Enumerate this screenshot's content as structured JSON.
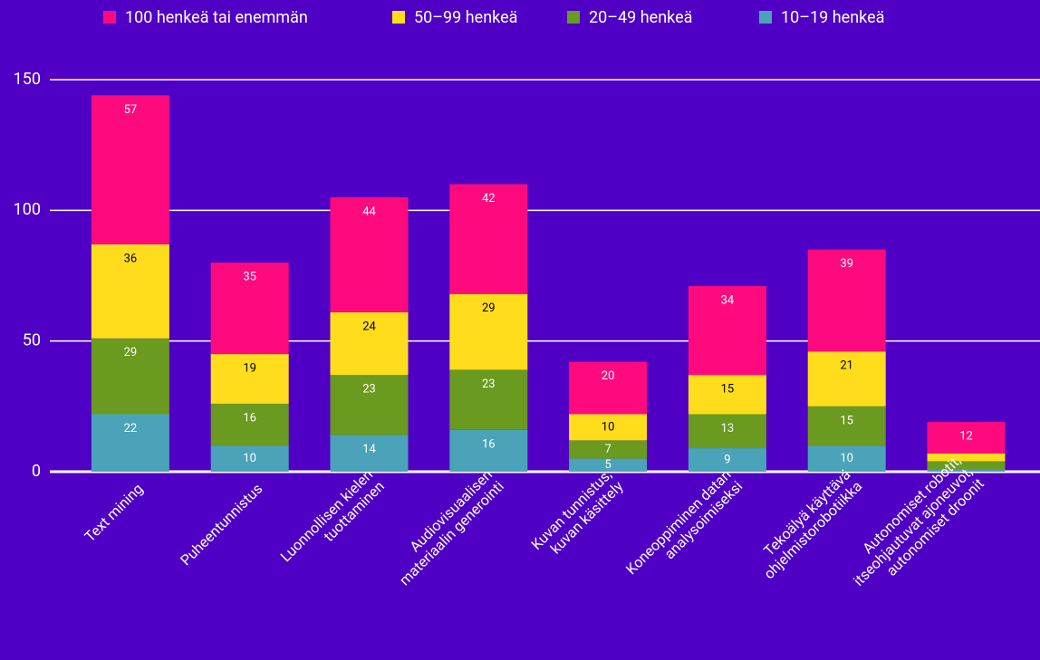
{
  "chart_data": {
    "type": "stacked_bar",
    "categories": [
      [
        "Text mining"
      ],
      [
        "Puheentunnistus"
      ],
      [
        "Luonnollisen kielen",
        "tuottaminen"
      ],
      [
        "Audiovisuaalisen",
        "materiaalin generointi"
      ],
      [
        "Kuvan tunnistus,",
        "kuvan käsittely"
      ],
      [
        "Koneoppiminen datan",
        "analysoimiseksi"
      ],
      [
        "Tekoälyä käyttävä",
        "ohjelmistorobotiikka"
      ],
      [
        "Autonomiset robotit,",
        "itseohjautuvat ajoneuvot,",
        "autonomiset droonit"
      ]
    ],
    "series": [
      {
        "name": "10–19 henkeä",
        "color": "#4aa3b8",
        "values": [
          22,
          10,
          14,
          16,
          5,
          9,
          10,
          1
        ]
      },
      {
        "name": "20–49 henkeä",
        "color": "#6a9a1f",
        "values": [
          29,
          16,
          23,
          23,
          7,
          13,
          15,
          3
        ]
      },
      {
        "name": "50–99 henkeä",
        "color": "#ffdd1c",
        "values": [
          36,
          19,
          24,
          29,
          10,
          15,
          21,
          3
        ]
      },
      {
        "name": "100 henkeä tai enemmän",
        "color": "#ff0a7e",
        "values": [
          57,
          35,
          44,
          42,
          20,
          34,
          39,
          12
        ]
      }
    ],
    "legend_order": [
      3,
      2,
      1,
      0
    ],
    "ylim": [
      0,
      150
    ],
    "yticks": [
      0,
      50,
      100,
      150
    ],
    "grid": true
  }
}
